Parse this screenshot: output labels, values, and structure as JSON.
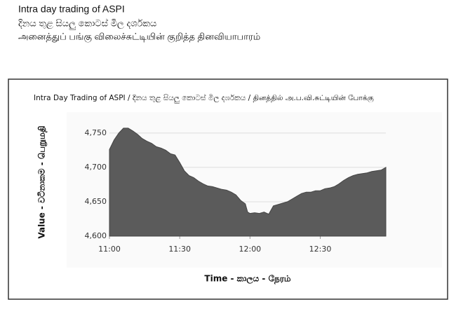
{
  "header": {
    "title": "Intra day trading of ASPI",
    "title_si": "දිනය තුළ සියලු කොටස් මිල දර්ශකය",
    "title_ta": "அனைத்துப் பங்கு விலைச்சுட்டியின் குறித்த தினவியாபாரம்"
  },
  "chart_data": {
    "type": "area",
    "title": "Intra Day Trading of ASPI / දිනය තුළ සියලු කොටස් මිල දර්ශකය / தினத்தில் அ.ப.வி.சுட்டியின் போக்கு",
    "x_label": "Time - කාලය - நேரம்",
    "y_label": "Value - වටිනාකම - பெறுமதி",
    "color": "#5b5b5b",
    "grid": true,
    "x": [
      "11:00",
      "11:02",
      "11:04",
      "11:06",
      "11:08",
      "11:10",
      "11:12",
      "11:14",
      "11:16",
      "11:18",
      "11:20",
      "11:22",
      "11:24",
      "11:26",
      "11:28",
      "11:30",
      "11:32",
      "11:34",
      "11:36",
      "11:38",
      "11:40",
      "11:42",
      "11:44",
      "11:46",
      "11:48",
      "11:50",
      "11:52",
      "11:54",
      "11:56",
      "11:58",
      "11:59",
      "12:00",
      "12:02",
      "12:04",
      "12:06",
      "12:08",
      "12:10",
      "12:12",
      "12:14",
      "12:16",
      "12:18",
      "12:20",
      "12:22",
      "12:24",
      "12:26",
      "12:28",
      "12:30",
      "12:32",
      "12:34",
      "12:36",
      "12:38",
      "12:40",
      "12:42",
      "12:44",
      "12:46",
      "12:48",
      "12:50",
      "12:52",
      "12:54",
      "12:56",
      "12:58"
    ],
    "values": [
      4726,
      4740,
      4750,
      4757,
      4757,
      4753,
      4748,
      4742,
      4738,
      4735,
      4730,
      4728,
      4725,
      4720,
      4718,
      4707,
      4695,
      4688,
      4685,
      4680,
      4676,
      4673,
      4672,
      4670,
      4668,
      4667,
      4664,
      4660,
      4652,
      4647,
      4635,
      4633,
      4634,
      4633,
      4635,
      4632,
      4644,
      4646,
      4648,
      4650,
      4654,
      4658,
      4662,
      4664,
      4664,
      4666,
      4666,
      4669,
      4670,
      4672,
      4676,
      4681,
      4685,
      4688,
      4690,
      4691,
      4692,
      4694,
      4695,
      4696,
      4700
    ],
    "xlim": [
      "11:00",
      "12:58"
    ],
    "xticks": [
      "11:00",
      "11:30",
      "12:00",
      "12:30"
    ],
    "ylim": [
      4600,
      4760
    ],
    "yticks": [
      {
        "value": 4600,
        "label": "4,600"
      },
      {
        "value": 4650,
        "label": "4,650"
      },
      {
        "value": 4700,
        "label": "4,700"
      },
      {
        "value": 4750,
        "label": "4,750"
      }
    ]
  }
}
